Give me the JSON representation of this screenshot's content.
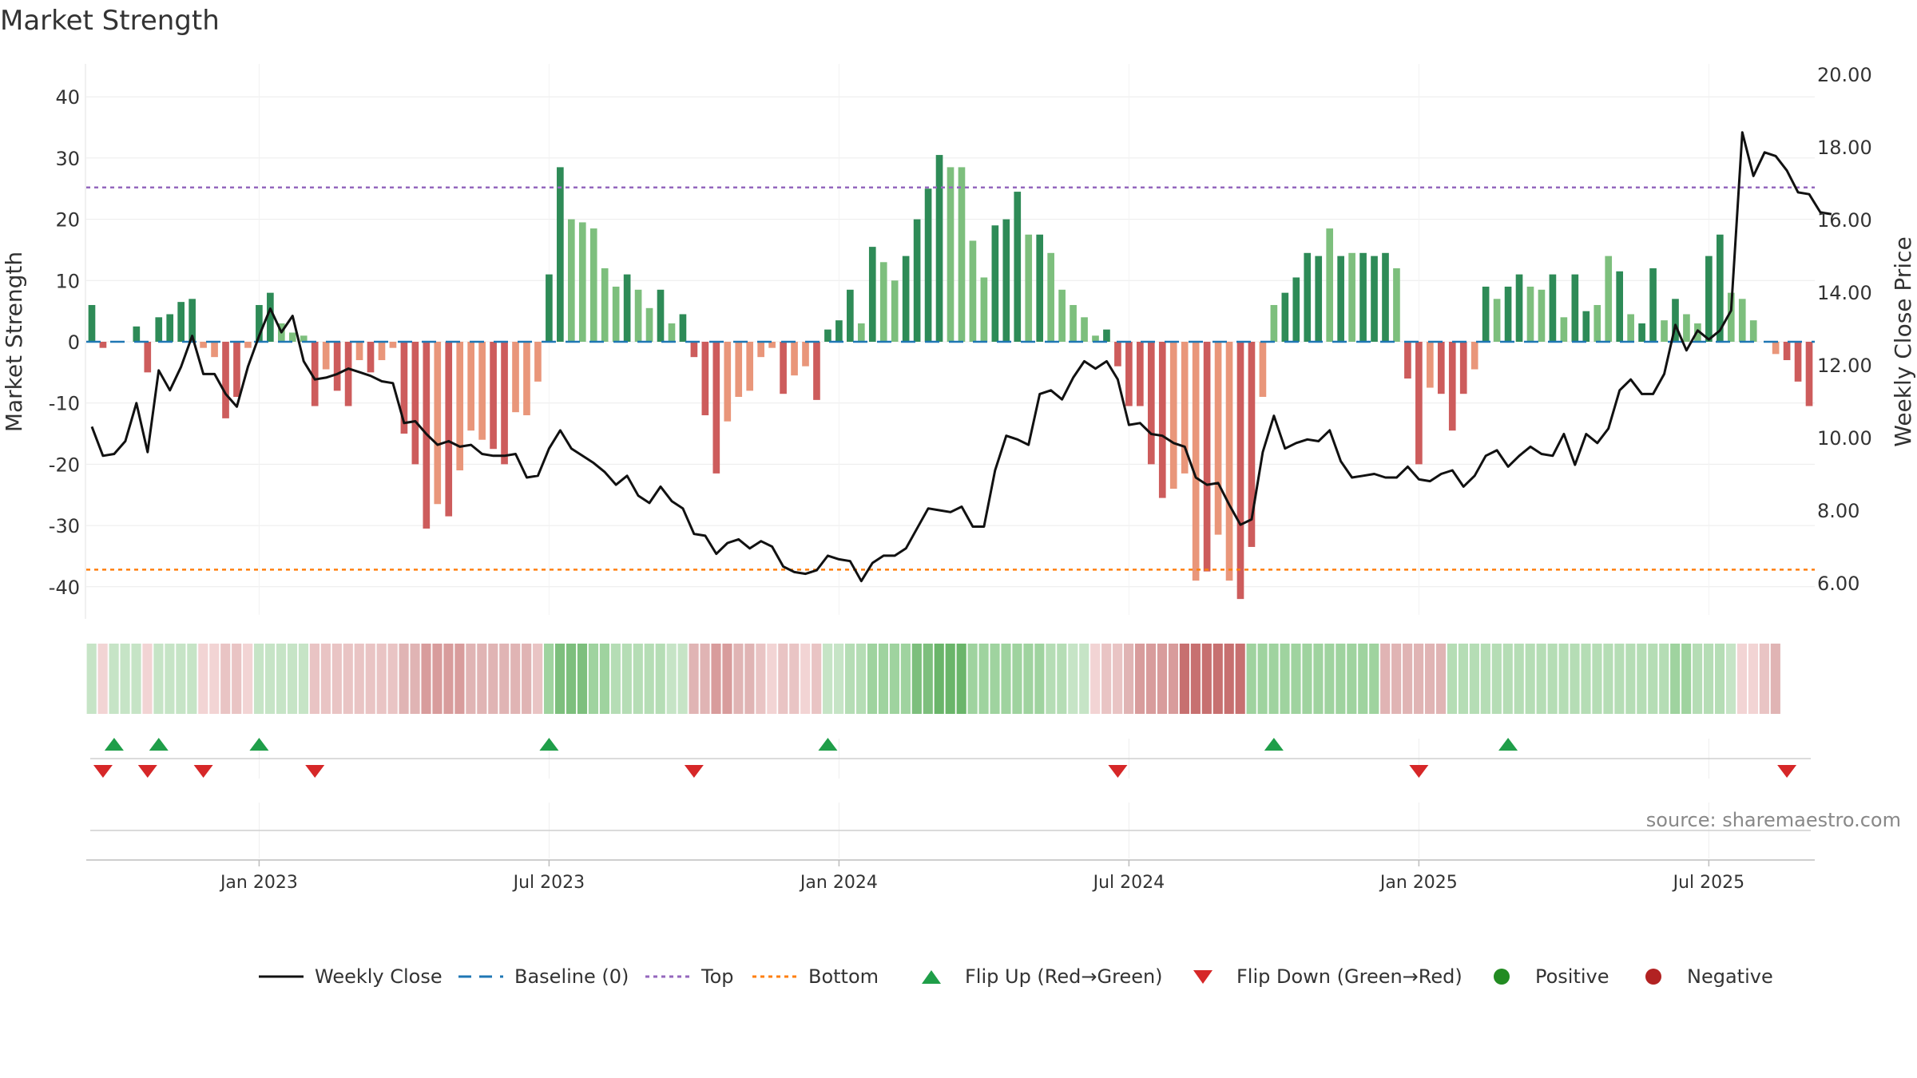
{
  "title": "Market Strength",
  "source": "source: sharemaestro.com",
  "colors": {
    "strong_green": "#2e8b57",
    "light_green": "#7dbf7d",
    "strong_red": "#cd5c5c",
    "light_red": "#e9967a",
    "close_line": "#111111",
    "baseline": "#1f77b4",
    "top_line": "#9467bd",
    "bottom_line": "#ff7f0e",
    "flip_up": "#1f9e49",
    "flip_down": "#d62728",
    "positive": "#228b22",
    "negative": "#b22222"
  },
  "legend": [
    {
      "key": "close",
      "label": "Weekly Close",
      "symbol": "line-solid"
    },
    {
      "key": "baseline",
      "label": "Baseline (0)",
      "symbol": "line-dashed"
    },
    {
      "key": "top",
      "label": "Top",
      "symbol": "line-dotted-purple"
    },
    {
      "key": "bottom",
      "label": "Bottom",
      "symbol": "line-dotted-orange"
    },
    {
      "key": "flip_up",
      "label": "Flip Up (Red→Green)",
      "symbol": "triangle-up"
    },
    {
      "key": "flip_down",
      "label": "Flip Down (Green→Red)",
      "symbol": "triangle-down"
    },
    {
      "key": "positive",
      "label": "Positive",
      "symbol": "dot-green"
    },
    {
      "key": "negative",
      "label": "Negative",
      "symbol": "dot-red"
    }
  ],
  "chart_data": {
    "type": "bar",
    "title": "Market Strength",
    "ylabel": "Market Strength",
    "y2label": "Weekly Close Price",
    "ylim": [
      -45,
      45
    ],
    "y_ticks": [
      40,
      30,
      20,
      10,
      0,
      -10,
      -20,
      -30,
      -40
    ],
    "y2lim": [
      5.0,
      20.6
    ],
    "y2_ticks": [
      "20.00",
      "18.00",
      "16.00",
      "14.00",
      "12.00",
      "10.00",
      "8.00",
      "6.00"
    ],
    "x_ticks": [
      "Jan 2023",
      "Jul 2023",
      "Jan 2024",
      "Jul 2024",
      "Jan 2025",
      "Jul 2025"
    ],
    "x_tick_week_index": [
      15,
      41,
      67,
      93,
      119,
      145
    ],
    "top_level": 25.2,
    "bottom_level": -37.2,
    "baseline": 0,
    "strength": [
      6,
      -1,
      0,
      0,
      2.5,
      -5,
      4,
      4.5,
      6.5,
      7,
      -1,
      -2.5,
      -12.5,
      -9,
      -1,
      6,
      8,
      3,
      1.5,
      1,
      -10.5,
      -4.5,
      -8,
      -10.5,
      -3,
      -5,
      -3,
      -1,
      -15,
      -20,
      -30.5,
      -26.5,
      -28.5,
      -21,
      -14.5,
      -16,
      -17.5,
      -20,
      -11.5,
      -12,
      -6.5,
      11,
      28.5,
      20,
      19.5,
      18.5,
      12,
      9,
      11,
      8.5,
      5.5,
      8.5,
      3,
      4.5,
      -2.5,
      -12,
      -21.5,
      -13,
      -9,
      -8,
      -2.5,
      -1,
      -8.5,
      -5.5,
      -4,
      -9.5,
      2,
      3.5,
      8.5,
      3,
      15.5,
      13,
      10,
      14,
      20,
      25,
      30.5,
      28.5,
      28.5,
      16.5,
      10.5,
      19,
      20,
      24.5,
      17.5,
      17.5,
      14.5,
      8.5,
      6,
      4,
      1,
      2,
      -4,
      -10.5,
      -10.5,
      -20,
      -25.5,
      -24,
      -21.5,
      -39,
      -37.5,
      -31.5,
      -39,
      -42,
      -33.5,
      -9,
      6,
      8,
      10.5,
      14.5,
      14,
      18.5,
      14,
      14.5,
      14.5,
      14,
      14.5,
      12,
      -6,
      -20,
      -7.5,
      -8.5,
      -14.5,
      -8.5,
      -4.5,
      9,
      7,
      9,
      11,
      9,
      8.5,
      11,
      4,
      11,
      5,
      6,
      14,
      11.5,
      4.5,
      3,
      12,
      3.5,
      7,
      4.5,
      3,
      14,
      17.5,
      8,
      7,
      3.5,
      0,
      -2,
      -3,
      -6.5,
      -10.5
    ],
    "bar_shade": [
      "s",
      "s",
      "s",
      "s",
      "s",
      "s",
      "s",
      "s",
      "s",
      "s",
      "l",
      "l",
      "s",
      "s",
      "l",
      "s",
      "s",
      "l",
      "l",
      "l",
      "s",
      "l",
      "s",
      "s",
      "l",
      "s",
      "l",
      "l",
      "s",
      "s",
      "s",
      "l",
      "s",
      "l",
      "l",
      "l",
      "s",
      "s",
      "l",
      "l",
      "l",
      "s",
      "s",
      "l",
      "l",
      "l",
      "l",
      "l",
      "s",
      "l",
      "l",
      "s",
      "l",
      "s",
      "s",
      "s",
      "s",
      "l",
      "l",
      "l",
      "l",
      "l",
      "s",
      "l",
      "l",
      "s",
      "s",
      "s",
      "s",
      "l",
      "s",
      "l",
      "l",
      "s",
      "s",
      "s",
      "s",
      "l",
      "l",
      "l",
      "l",
      "s",
      "s",
      "s",
      "l",
      "s",
      "l",
      "l",
      "l",
      "l",
      "l",
      "s",
      "s",
      "s",
      "s",
      "s",
      "s",
      "l",
      "l",
      "l",
      "s",
      "l",
      "l",
      "s",
      "s",
      "l",
      "l",
      "s",
      "s",
      "s",
      "s",
      "l",
      "s",
      "l",
      "s",
      "s",
      "s",
      "l",
      "s",
      "s",
      "l",
      "s",
      "s",
      "s",
      "l",
      "s",
      "l",
      "s",
      "s",
      "l",
      "l",
      "s",
      "l",
      "s",
      "s",
      "l",
      "l",
      "s",
      "l",
      "s",
      "s",
      "l",
      "s",
      "l",
      "l",
      "s",
      "s",
      "l",
      "l",
      "l",
      "s",
      "l",
      "s",
      "s",
      "s"
    ],
    "close": [
      10.3,
      9.5,
      9.55,
      9.9,
      10.95,
      9.6,
      11.85,
      11.3,
      11.95,
      12.8,
      11.75,
      11.75,
      11.2,
      10.85,
      11.95,
      12.8,
      13.55,
      12.9,
      13.35,
      12.1,
      11.6,
      11.65,
      11.75,
      11.9,
      11.8,
      11.7,
      11.55,
      11.5,
      10.4,
      10.45,
      10.1,
      9.8,
      9.9,
      9.75,
      9.8,
      9.55,
      9.5,
      9.5,
      9.55,
      8.9,
      8.95,
      9.7,
      10.2,
      9.7,
      9.5,
      9.3,
      9.05,
      8.7,
      8.95,
      8.4,
      8.2,
      8.65,
      8.25,
      8.05,
      7.35,
      7.3,
      6.8,
      7.1,
      7.2,
      6.95,
      7.15,
      7.0,
      6.45,
      6.3,
      6.25,
      6.35,
      6.75,
      6.65,
      6.6,
      6.05,
      6.55,
      6.75,
      6.75,
      6.95,
      7.5,
      8.05,
      8.0,
      7.95,
      8.1,
      7.55,
      7.55,
      9.1,
      10.05,
      9.95,
      9.8,
      11.2,
      11.3,
      11.05,
      11.65,
      12.1,
      11.9,
      12.1,
      11.6,
      10.35,
      10.4,
      10.1,
      10.05,
      9.85,
      9.75,
      8.9,
      8.7,
      8.75,
      8.15,
      7.6,
      7.75,
      9.6,
      10.6,
      9.7,
      9.85,
      9.95,
      9.9,
      10.2,
      9.35,
      8.9,
      8.95,
      9.0,
      8.9,
      8.9,
      9.2,
      8.85,
      8.8,
      9.0,
      9.1,
      8.65,
      8.95,
      9.5,
      9.65,
      9.2,
      9.5,
      9.75,
      9.55,
      9.5,
      10.1,
      9.25,
      10.1,
      9.85,
      10.25,
      11.3,
      11.6,
      11.2,
      11.2,
      11.75,
      13.1,
      12.4,
      12.95,
      12.7,
      12.95,
      13.5,
      18.4,
      17.2,
      17.85,
      17.75,
      17.35,
      16.75,
      16.7,
      16.2,
      16.15
    ],
    "regime_band": [
      "#c6e4c6",
      "#f2d4d4",
      "#c6e4c6",
      "#c6e4c6",
      "#c6e4c6",
      "#f2d4d4",
      "#c6e4c6",
      "#c6e4c6",
      "#c6e4c6",
      "#c6e4c6",
      "#f2d4d4",
      "#f2d4d4",
      "#e9c4c4",
      "#e9c4c4",
      "#f2d4d4",
      "#c6e4c6",
      "#c6e4c6",
      "#c6e4c6",
      "#c6e4c6",
      "#c6e4c6",
      "#e9c4c4",
      "#e9c4c4",
      "#e9c4c4",
      "#e9c4c4",
      "#e9c4c4",
      "#e9c4c4",
      "#e9c4c4",
      "#e9c4c4",
      "#e0b4b4",
      "#e0b4b4",
      "#d89c9c",
      "#d89c9c",
      "#d89c9c",
      "#d89c9c",
      "#e0b4b4",
      "#e0b4b4",
      "#e0b4b4",
      "#e0b4b4",
      "#e0b4b4",
      "#e0b4b4",
      "#e9c4c4",
      "#9fd39f",
      "#7dbf7d",
      "#7dbf7d",
      "#7dbf7d",
      "#9fd39f",
      "#9fd39f",
      "#b5ddb5",
      "#b5ddb5",
      "#b5ddb5",
      "#b5ddb5",
      "#b5ddb5",
      "#c6e4c6",
      "#c6e4c6",
      "#e0b4b4",
      "#e0b4b4",
      "#d89c9c",
      "#d89c9c",
      "#e0b4b4",
      "#e0b4b4",
      "#e9c4c4",
      "#f2d4d4",
      "#e9c4c4",
      "#e9c4c4",
      "#f2d4d4",
      "#e9c4c4",
      "#c6e4c6",
      "#c6e4c6",
      "#b5ddb5",
      "#b5ddb5",
      "#9fd39f",
      "#9fd39f",
      "#9fd39f",
      "#9fd39f",
      "#7dbf7d",
      "#7dbf7d",
      "#6ab56a",
      "#6ab56a",
      "#6ab56a",
      "#9fd39f",
      "#9fd39f",
      "#9fd39f",
      "#9fd39f",
      "#9fd39f",
      "#9fd39f",
      "#9fd39f",
      "#b5ddb5",
      "#b5ddb5",
      "#c6e4c6",
      "#c6e4c6",
      "#f2d4d4",
      "#e9c4c4",
      "#e9c4c4",
      "#e0b4b4",
      "#d89c9c",
      "#d89c9c",
      "#d89c9c",
      "#d89c9c",
      "#c77070",
      "#c77070",
      "#c77070",
      "#c77070",
      "#c77070",
      "#c77070",
      "#9fd39f",
      "#9fd39f",
      "#9fd39f",
      "#9fd39f",
      "#9fd39f",
      "#9fd39f",
      "#9fd39f",
      "#9fd39f",
      "#9fd39f",
      "#9fd39f",
      "#9fd39f",
      "#9fd39f",
      "#e0b4b4",
      "#e0b4b4",
      "#e0b4b4",
      "#e0b4b4",
      "#e0b4b4",
      "#e0b4b4",
      "#b5ddb5",
      "#b5ddb5",
      "#b5ddb5",
      "#b5ddb5",
      "#b5ddb5",
      "#b5ddb5",
      "#b5ddb5",
      "#b5ddb5",
      "#b5ddb5",
      "#b5ddb5",
      "#b5ddb5",
      "#b5ddb5",
      "#b5ddb5",
      "#b5ddb5",
      "#b5ddb5",
      "#b5ddb5",
      "#b5ddb5",
      "#b5ddb5",
      "#b5ddb5",
      "#b5ddb5",
      "#9fd39f",
      "#9fd39f",
      "#b5ddb5",
      "#b5ddb5",
      "#b5ddb5",
      "#c6e4c6",
      "#f2d4d4",
      "#f2d4d4",
      "#e9c4c4",
      "#e0b4b4"
    ],
    "flip_up_weeks": [
      2,
      6,
      15,
      41,
      66,
      106,
      127
    ],
    "flip_down_weeks": [
      1,
      5,
      10,
      20,
      54,
      92,
      119,
      152
    ]
  }
}
